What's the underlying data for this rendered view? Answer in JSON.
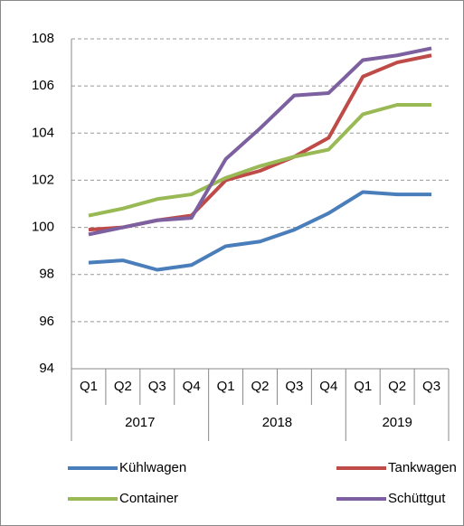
{
  "chart_data": {
    "type": "line",
    "categories": [
      "Q1",
      "Q2",
      "Q3",
      "Q4",
      "Q1",
      "Q2",
      "Q3",
      "Q4",
      "Q1",
      "Q2",
      "Q3"
    ],
    "x_groups": [
      {
        "label": "2017",
        "count": 4
      },
      {
        "label": "2018",
        "count": 4
      },
      {
        "label": "2019",
        "count": 3
      }
    ],
    "series": [
      {
        "name": "Kühlwagen",
        "color": "#4a7ebb",
        "values": [
          98.5,
          98.6,
          98.2,
          98.4,
          99.2,
          99.4,
          99.9,
          100.6,
          101.5,
          101.4,
          101.4
        ]
      },
      {
        "name": "Tankwagen",
        "color": "#be4b48",
        "values": [
          99.9,
          100.0,
          100.3,
          100.5,
          102.0,
          102.4,
          103.0,
          103.8,
          106.4,
          107.0,
          107.3
        ]
      },
      {
        "name": "Container",
        "color": "#98b954",
        "values": [
          100.5,
          100.8,
          101.2,
          101.4,
          102.1,
          102.6,
          103.0,
          103.3,
          104.8,
          105.2,
          105.2
        ]
      },
      {
        "name": "Schüttgut",
        "color": "#7d60a0",
        "values": [
          99.7,
          100.0,
          100.3,
          100.4,
          102.9,
          104.2,
          105.6,
          105.7,
          107.1,
          107.3,
          107.6
        ]
      }
    ],
    "ylim": [
      94,
      108
    ],
    "yticks": [
      94,
      96,
      98,
      100,
      102,
      104,
      106,
      108
    ],
    "grid": true,
    "legend": "bottom"
  }
}
